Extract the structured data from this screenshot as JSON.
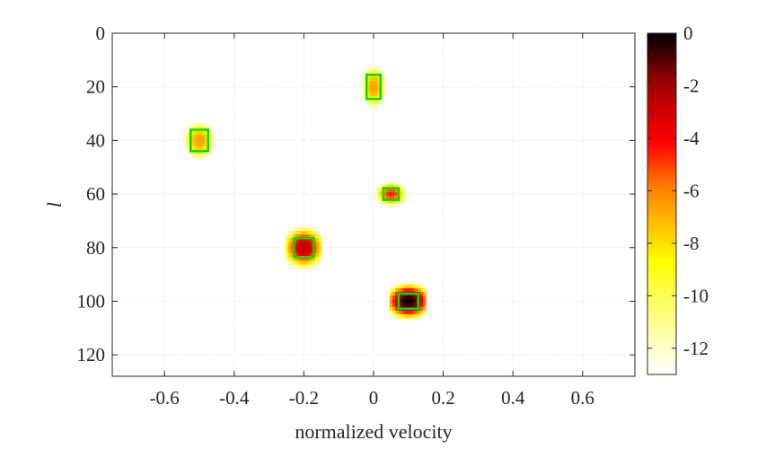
{
  "chart_data": {
    "type": "heatmap",
    "title": "",
    "xlabel": "normalized velocity",
    "ylabel": "l",
    "xlim": [
      -0.75,
      0.75
    ],
    "ylim": [
      0,
      128
    ],
    "x_ticks": [
      -0.6,
      -0.4,
      -0.2,
      0,
      0.2,
      0.4,
      0.6
    ],
    "x_tick_labels": [
      "-0.6",
      "-0.4",
      "-0.2",
      "0",
      "0.2",
      "0.4",
      "0.6"
    ],
    "y_ticks": [
      0,
      20,
      40,
      60,
      80,
      100,
      120
    ],
    "y_tick_labels": [
      "0",
      "20",
      "40",
      "60",
      "80",
      "100",
      "120"
    ],
    "grid": true,
    "colorbar": {
      "range": [
        -13,
        0
      ],
      "ticks": [
        0,
        -2,
        -4,
        -6,
        -8,
        -10,
        -12
      ],
      "tick_labels": [
        "0",
        "-2",
        "-4",
        "-6",
        "-8",
        "-10",
        "-12"
      ],
      "colormap": "hot_reversed"
    },
    "detection_box_color": "#00dd00",
    "targets": [
      {
        "velocity": 0.0,
        "l": 20,
        "peak_value": -6.5,
        "half_width": 0.02,
        "half_height": 4.5
      },
      {
        "velocity": -0.5,
        "l": 40,
        "peak_value": -6.5,
        "half_width": 0.025,
        "half_height": 4
      },
      {
        "velocity": 0.05,
        "l": 60,
        "peak_value": -4.5,
        "half_width": 0.022,
        "half_height": 2.2
      },
      {
        "velocity": -0.2,
        "l": 80,
        "peak_value": -2.5,
        "half_width": 0.028,
        "half_height": 3.5
      },
      {
        "velocity": 0.1,
        "l": 100,
        "peak_value": 0,
        "half_width": 0.028,
        "half_height": 2.8
      }
    ]
  }
}
